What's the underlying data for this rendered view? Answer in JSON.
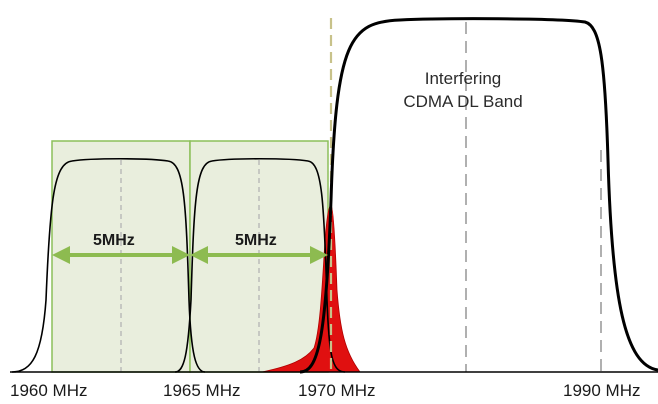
{
  "interferer": {
    "label_line1": "Interfering",
    "label_line2": "CDMA DL Band"
  },
  "channels": [
    {
      "width_label": "5MHz"
    },
    {
      "width_label": "5MHz"
    }
  ],
  "frequency_labels": [
    "1960 MHz",
    "1965 MHz",
    "1970 MHz",
    "1990 MHz"
  ],
  "colors": {
    "channel_fill": "#e9eedd",
    "channel_border": "#8cbf5a",
    "arrow": "#8dbb50",
    "curve": "#000000",
    "leakage": "#e01010",
    "band_edge_dashed": "#c8c28a",
    "center_dashed": "#b0b0b0"
  }
}
